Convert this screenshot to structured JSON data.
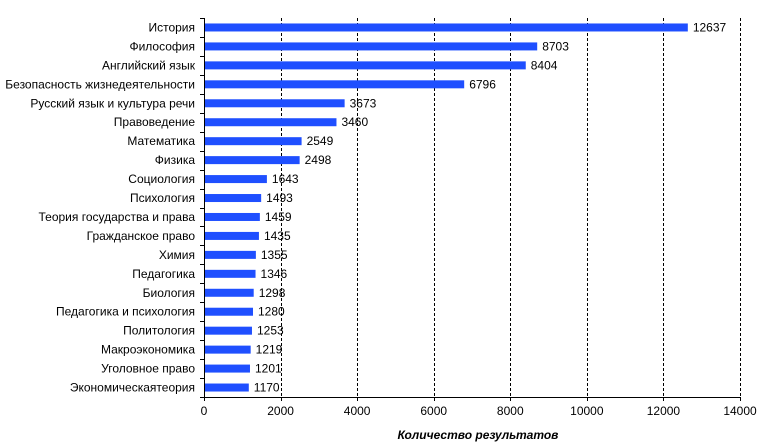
{
  "chart_data": {
    "type": "bar",
    "orientation": "horizontal",
    "categories": [
      "История",
      "Философия",
      "Английский язык",
      "Безопасность жизнедеятельности",
      "Русский язык и культура речи",
      "Правоведение",
      "Математика",
      "Физика",
      "Социология",
      "Психология",
      "Теория государства и права",
      "Гражданское право",
      "Химия",
      "Педагогика",
      "Биология",
      "Педагогика и психология",
      "Политология",
      "Макроэкономика",
      "Уголовное право",
      "Экономическаятеория"
    ],
    "values": [
      12637,
      8703,
      8404,
      6796,
      3673,
      3460,
      2549,
      2498,
      1643,
      1493,
      1459,
      1435,
      1355,
      1346,
      1298,
      1280,
      1253,
      1219,
      1201,
      1170
    ],
    "xlim": [
      0,
      14000
    ],
    "xticks": [
      0,
      2000,
      4000,
      6000,
      8000,
      10000,
      12000,
      14000
    ],
    "xlabel": "Количество  результатов",
    "ylabel": "",
    "title": "",
    "grid": "vertical dashed",
    "bar_color": "#1f4fff"
  }
}
